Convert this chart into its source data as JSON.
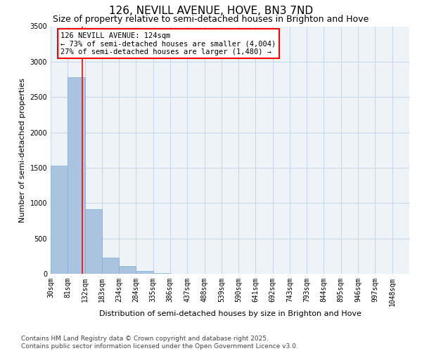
{
  "title": "126, NEVILL AVENUE, HOVE, BN3 7ND",
  "subtitle": "Size of property relative to semi-detached houses in Brighton and Hove",
  "xlabel": "Distribution of semi-detached houses by size in Brighton and Hove",
  "ylabel": "Number of semi-detached properties",
  "footer_line1": "Contains HM Land Registry data © Crown copyright and database right 2025.",
  "footer_line2": "Contains public sector information licensed under the Open Government Licence v3.0.",
  "annotation_line1": "126 NEVILL AVENUE: 124sqm",
  "annotation_line2": "← 73% of semi-detached houses are smaller (4,004)",
  "annotation_line3": "27% of semi-detached houses are larger (1,480) →",
  "bar_left_edges": [
    30,
    81,
    132,
    183,
    234,
    284,
    335,
    386,
    437,
    488,
    539,
    590,
    641,
    692,
    743,
    793,
    844,
    895,
    946,
    997
  ],
  "bar_widths": [
    51,
    51,
    51,
    51,
    50,
    51,
    51,
    51,
    51,
    51,
    51,
    51,
    51,
    51,
    50,
    51,
    51,
    51,
    51,
    51
  ],
  "bar_heights": [
    1530,
    2780,
    910,
    230,
    105,
    40,
    5,
    0,
    0,
    0,
    0,
    0,
    0,
    0,
    0,
    0,
    0,
    0,
    0,
    0
  ],
  "x_tick_labels": [
    "30sqm",
    "81sqm",
    "132sqm",
    "183sqm",
    "234sqm",
    "284sqm",
    "335sqm",
    "386sqm",
    "437sqm",
    "488sqm",
    "539sqm",
    "590sqm",
    "641sqm",
    "692sqm",
    "743sqm",
    "793sqm",
    "844sqm",
    "895sqm",
    "946sqm",
    "997sqm",
    "1048sqm"
  ],
  "x_tick_positions": [
    30,
    81,
    132,
    183,
    234,
    284,
    335,
    386,
    437,
    488,
    539,
    590,
    641,
    692,
    743,
    793,
    844,
    895,
    946,
    997,
    1048
  ],
  "ylim": [
    0,
    3500
  ],
  "yticks": [
    0,
    500,
    1000,
    1500,
    2000,
    2500,
    3000,
    3500
  ],
  "property_size": 124,
  "bar_color": "#aac4e0",
  "bar_edge_color": "#7aafd4",
  "grid_color": "#c8d8e8",
  "bg_color": "#eef3f8",
  "vline_color": "red",
  "annotation_box_color": "red",
  "title_fontsize": 11,
  "subtitle_fontsize": 9,
  "axis_label_fontsize": 8,
  "tick_fontsize": 7,
  "footer_fontsize": 6.5,
  "annotation_fontsize": 7.5
}
